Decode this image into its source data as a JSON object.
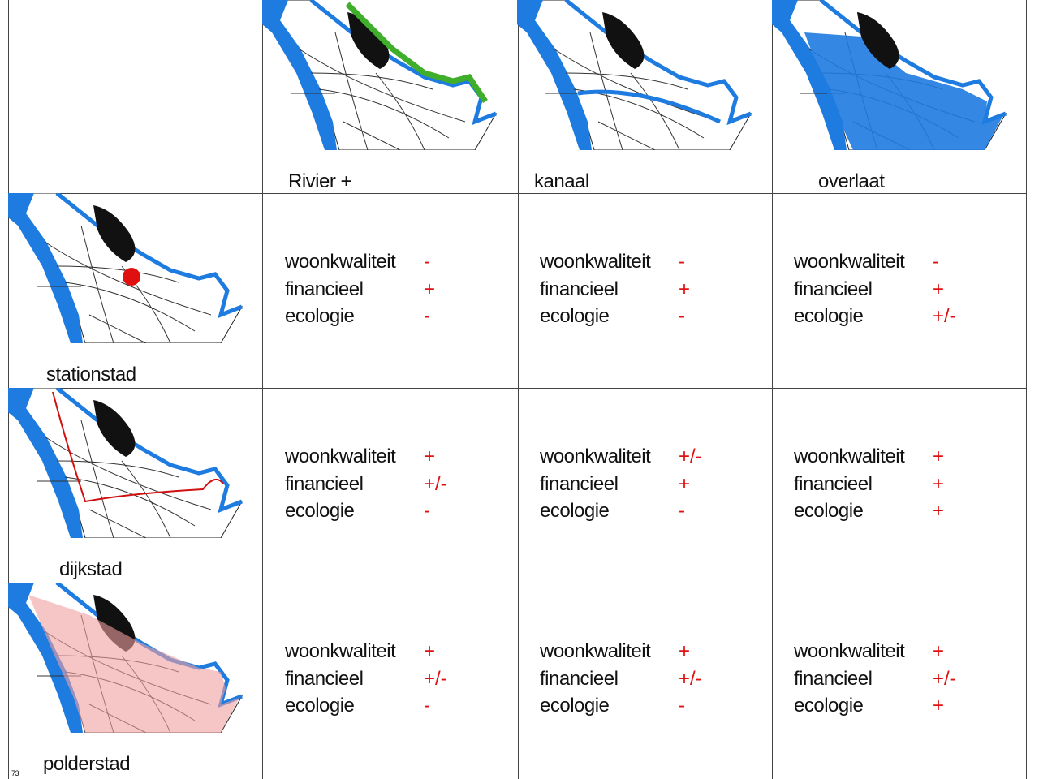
{
  "columns": [
    "Rivier +",
    "kanaal",
    "overlaat"
  ],
  "rows": [
    {
      "label": "stationstad",
      "cells": [
        [
          {
            "criterion": "woonkwaliteit",
            "score": "-"
          },
          {
            "criterion": "financieel",
            "score": "+"
          },
          {
            "criterion": "ecologie",
            "score": "-"
          }
        ],
        [
          {
            "criterion": "woonkwaliteit",
            "score": "-"
          },
          {
            "criterion": "financieel",
            "score": "+"
          },
          {
            "criterion": "ecologie",
            "score": "-"
          }
        ],
        [
          {
            "criterion": "woonkwaliteit",
            "score": "-"
          },
          {
            "criterion": "financieel",
            "score": "+"
          },
          {
            "criterion": "ecologie",
            "score": "+/-"
          }
        ]
      ]
    },
    {
      "label": "dijkstad",
      "cells": [
        [
          {
            "criterion": "woonkwaliteit",
            "score": "+"
          },
          {
            "criterion": "financieel",
            "score": "+/-"
          },
          {
            "criterion": "ecologie",
            "score": "-"
          }
        ],
        [
          {
            "criterion": "woonkwaliteit",
            "score": "+/-"
          },
          {
            "criterion": "financieel",
            "score": "+"
          },
          {
            "criterion": "ecologie",
            "score": "-"
          }
        ],
        [
          {
            "criterion": "woonkwaliteit",
            "score": "+"
          },
          {
            "criterion": "financieel",
            "score": "+"
          },
          {
            "criterion": "ecologie",
            "score": "+"
          }
        ]
      ]
    },
    {
      "label": "polderstad",
      "cells": [
        [
          {
            "criterion": "woonkwaliteit",
            "score": "+"
          },
          {
            "criterion": "financieel",
            "score": "+/-"
          },
          {
            "criterion": "ecologie",
            "score": "-"
          }
        ],
        [
          {
            "criterion": "woonkwaliteit",
            "score": "+"
          },
          {
            "criterion": "financieel",
            "score": "+/-"
          },
          {
            "criterion": "ecologie",
            "score": "-"
          }
        ],
        [
          {
            "criterion": "woonkwaliteit",
            "score": "+"
          },
          {
            "criterion": "financieel",
            "score": "+/-"
          },
          {
            "criterion": "ecologie",
            "score": "+"
          }
        ]
      ]
    }
  ],
  "page_number": "73"
}
